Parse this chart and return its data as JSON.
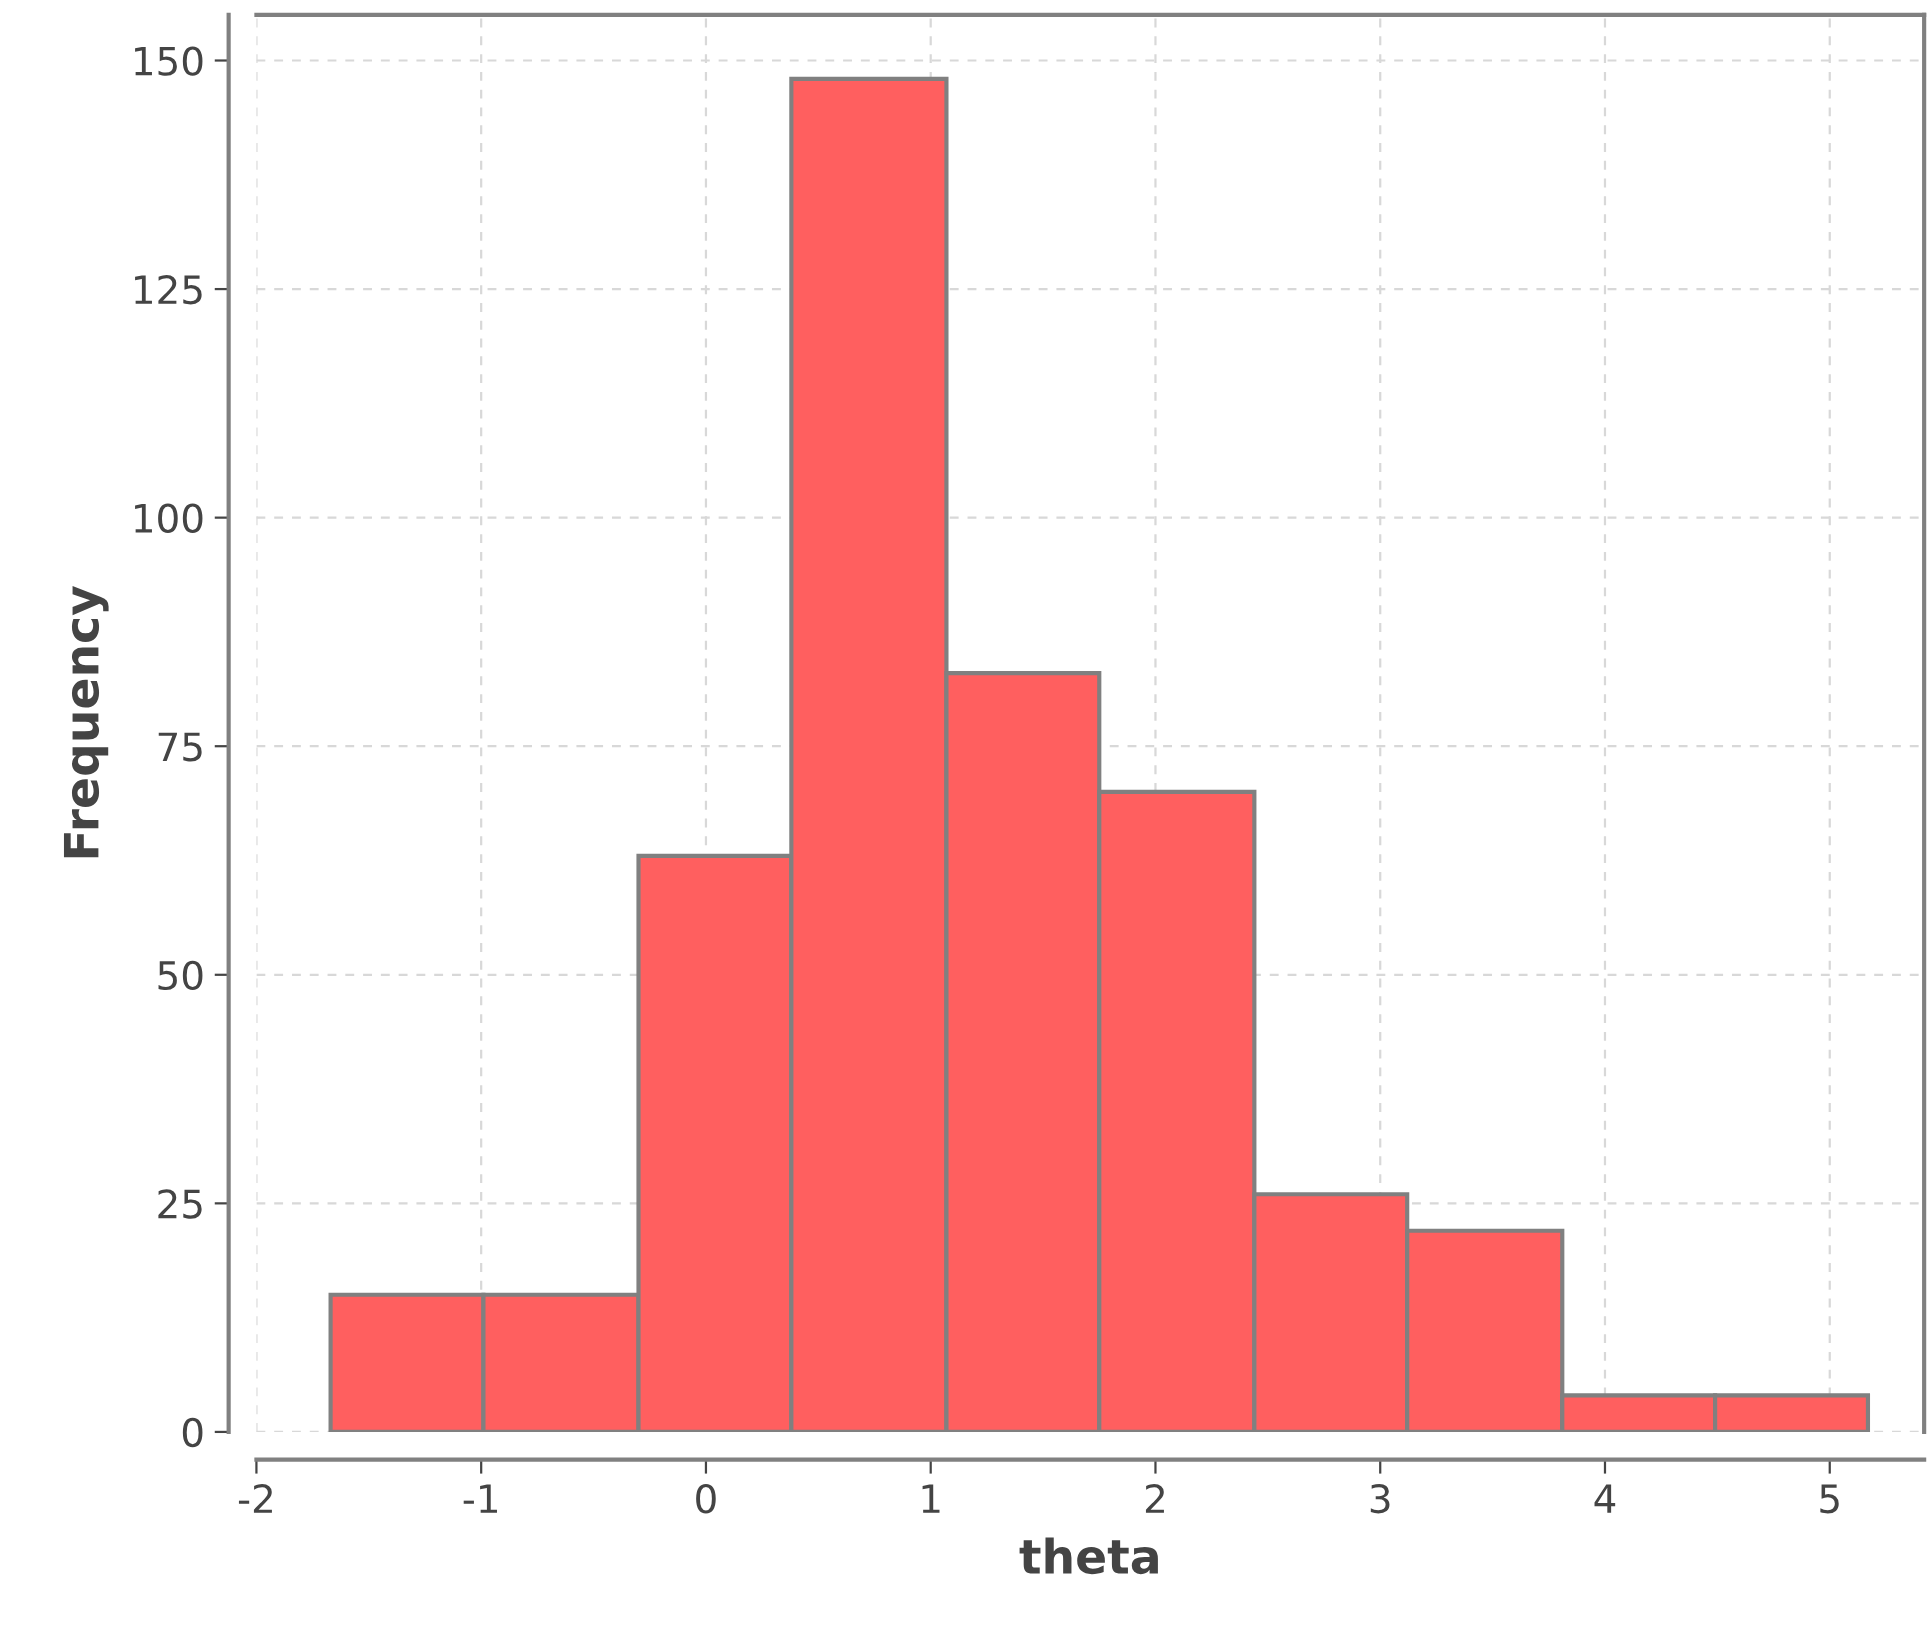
{
  "chart_data": {
    "type": "histogram",
    "xlabel": "theta",
    "ylabel": "Frequency",
    "bins": [
      -1.67,
      -0.99,
      -0.3,
      0.38,
      1.07,
      1.75,
      2.44,
      3.12,
      3.81,
      4.49,
      5.17
    ],
    "values": [
      15,
      15,
      63,
      148,
      83,
      70,
      26,
      22,
      4,
      4
    ],
    "color": "#ff5f5f",
    "xlim": [
      -2,
      5.42
    ],
    "xticks": [
      {
        "value": -2,
        "label": "-2"
      },
      {
        "value": -1,
        "label": "-1"
      },
      0,
      1,
      2,
      3,
      4,
      5
    ],
    "ylim": [
      0,
      155
    ],
    "yticks": [
      0,
      25,
      50,
      75,
      100,
      125,
      150
    ],
    "grid": true
  }
}
